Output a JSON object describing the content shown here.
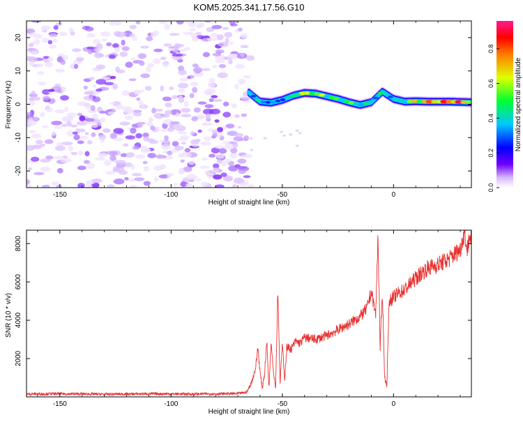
{
  "title": "KOM5.2025.341.17.56.G10",
  "chart_data": [
    {
      "type": "heatmap",
      "name": "spectrogram",
      "xlabel": "Height of straight line (km)",
      "ylabel": "Frequency (Hz)",
      "xlim": [
        -165,
        35
      ],
      "ylim": [
        -25,
        25
      ],
      "xticks": [
        -150,
        -100,
        -50,
        0
      ],
      "xtick_labels": [
        "-150",
        "-100",
        "-50",
        "0"
      ],
      "yticks": [
        20,
        10,
        0,
        -10,
        -20
      ],
      "ytick_labels": [
        "20",
        "10",
        "0",
        "-10",
        "-20"
      ],
      "noise_region_x": [
        -165,
        -65
      ],
      "signal_trace": {
        "x": [
          -65,
          -60,
          -55,
          -50,
          -45,
          -40,
          -35,
          -30,
          -25,
          -20,
          -15,
          -10,
          -5,
          0,
          5,
          10,
          15,
          20,
          25,
          30,
          35
        ],
        "freq": [
          3.5,
          0.8,
          0.5,
          1.3,
          2.6,
          3.4,
          3.2,
          2.4,
          1.6,
          0.6,
          -0.2,
          0.6,
          3.8,
          1.6,
          0.8,
          0.9,
          0.8,
          0.8,
          0.8,
          0.7,
          0.6
        ],
        "amp": [
          0.25,
          0.45,
          0.35,
          0.3,
          0.55,
          0.7,
          0.65,
          0.55,
          0.55,
          0.6,
          0.5,
          0.45,
          0.5,
          0.4,
          0.55,
          0.7,
          0.8,
          0.85,
          0.9,
          0.85,
          0.75
        ]
      },
      "colorbar": {
        "label": "Normalized spectral amplitude",
        "ticks": [
          0.0,
          0.2,
          0.4,
          0.6,
          0.8
        ],
        "tick_labels": [
          "0.0",
          "0.2",
          "0.4",
          "0.6",
          "0.8"
        ],
        "range": [
          0,
          0.96
        ],
        "colors": [
          "#ffffff",
          "#7000ff",
          "#0000ff",
          "#00c8ff",
          "#00ff30",
          "#e0ff00",
          "#ff7a00",
          "#ff0000",
          "#ff1a90"
        ]
      }
    },
    {
      "type": "line",
      "name": "snr",
      "xlabel": "Height of straight line (km)",
      "ylabel": "SNR (10 * v/v)",
      "xlim": [
        -165,
        35
      ],
      "ylim": [
        0,
        8700
      ],
      "xticks": [
        -150,
        -100,
        -50,
        0
      ],
      "xtick_labels": [
        "-150",
        "-100",
        "-50",
        "0"
      ],
      "yticks": [
        2000,
        4000,
        6000,
        8000
      ],
      "ytick_labels": [
        "2000",
        "4000",
        "6000",
        "8000"
      ],
      "color": "#e83030",
      "series": {
        "x": [
          -165,
          -150,
          -130,
          -110,
          -90,
          -70,
          -66,
          -64,
          -62,
          -61,
          -60,
          -59,
          -58,
          -57,
          -56,
          -55,
          -54,
          -53,
          -52,
          -51,
          -50,
          -49,
          -48,
          -46,
          -44,
          -42,
          -40,
          -35,
          -30,
          -25,
          -20,
          -15,
          -12,
          -10,
          -8,
          -7,
          -6,
          -5,
          -4,
          -3,
          -2,
          0,
          2,
          5,
          10,
          15,
          20,
          25,
          30,
          32,
          33,
          34,
          35
        ],
        "snr": [
          150,
          160,
          140,
          160,
          150,
          170,
          250,
          700,
          1500,
          2600,
          1300,
          450,
          1200,
          2900,
          450,
          3000,
          1300,
          500,
          5700,
          700,
          2800,
          900,
          2600,
          2500,
          2900,
          2800,
          3100,
          3000,
          3200,
          3500,
          3800,
          4200,
          4600,
          5500,
          4300,
          8500,
          2500,
          5500,
          1000,
          600,
          5000,
          5200,
          5400,
          5600,
          6200,
          6700,
          6900,
          7200,
          7700,
          8700,
          7600,
          8300,
          8400
        ]
      }
    }
  ]
}
